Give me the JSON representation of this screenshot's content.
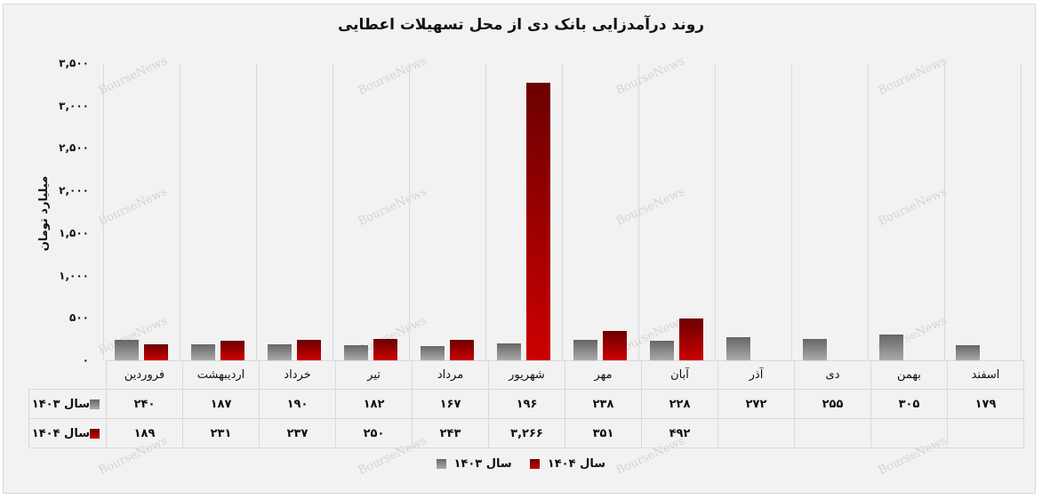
{
  "title": "روند درآمدزایی بانک دی از محل تسهیلات اعطایی",
  "watermark": "BourseNews",
  "colors": {
    "series_1403_top": "#666666",
    "series_1403_bottom": "#aaaaaa",
    "series_1404_top": "#6b0000",
    "series_1404_bottom": "#cc0000",
    "background": "#f2f2f2",
    "grid": "#d9d9d9"
  },
  "y_axis": {
    "label": "میلیارد تومان",
    "ticks": [
      "۰",
      "۵۰۰",
      "۱,۰۰۰",
      "۱,۵۰۰",
      "۲,۰۰۰",
      "۲,۵۰۰",
      "۳,۰۰۰",
      "۳,۵۰۰"
    ]
  },
  "table": {
    "row_1403": {
      "label": "سال ۱۴۰۳",
      "cells": [
        "۲۴۰",
        "۱۸۷",
        "۱۹۰",
        "۱۸۲",
        "۱۶۷",
        "۱۹۶",
        "۲۳۸",
        "۲۲۸",
        "۲۷۲",
        "۲۵۵",
        "۳۰۵",
        "۱۷۹"
      ]
    },
    "row_1404": {
      "label": "سال ۱۴۰۴",
      "cells": [
        "۱۸۹",
        "۲۳۱",
        "۲۳۷",
        "۲۵۰",
        "۲۴۳",
        "۳,۲۶۶",
        "۳۵۱",
        "۴۹۲",
        "",
        "",
        "",
        ""
      ]
    }
  },
  "legend": [
    {
      "label": "سال ۱۴۰۴",
      "series": "s1404"
    },
    {
      "label": "سال ۱۴۰۳",
      "series": "s1403"
    }
  ],
  "chart_data": {
    "type": "bar",
    "title": "روند درآمدزایی بانک دی از محل تسهیلات اعطایی",
    "xlabel": "",
    "ylabel": "میلیارد تومان",
    "ylim": [
      0,
      3500
    ],
    "yticks": [
      0,
      500,
      1000,
      1500,
      2000,
      2500,
      3000,
      3500
    ],
    "grid": "vertical category separators",
    "legend_position": "bottom",
    "data_table": true,
    "categories": [
      "فروردین",
      "اردیبهشت",
      "خرداد",
      "تیر",
      "مرداد",
      "شهریور",
      "مهر",
      "آبان",
      "آذر",
      "دی",
      "بهمن",
      "اسفند"
    ],
    "series": [
      {
        "name": "سال ۱۴۰۳",
        "values": [
          240,
          187,
          190,
          182,
          167,
          196,
          238,
          228,
          272,
          255,
          305,
          179
        ]
      },
      {
        "name": "سال ۱۴۰۴",
        "values": [
          189,
          231,
          237,
          250,
          243,
          3266,
          351,
          492,
          null,
          null,
          null,
          null
        ]
      }
    ]
  }
}
